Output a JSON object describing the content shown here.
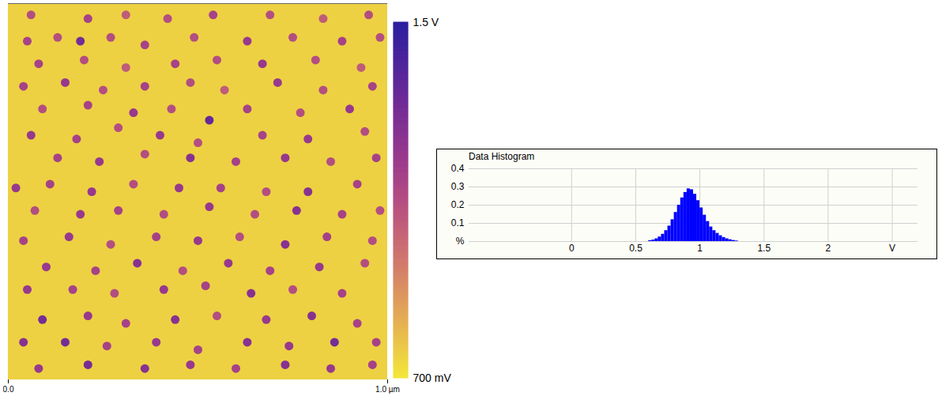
{
  "chart_data": [
    {
      "type": "heatmap",
      "xlim": [
        0,
        1
      ],
      "ylim": [
        0,
        1
      ],
      "xticks": [
        {
          "value": 0,
          "label": "0.0"
        },
        {
          "value": 1,
          "label": "1.0 µm"
        }
      ],
      "tick_labels": "x",
      "background": 0.75,
      "spots": {
        "x": [
          0.06,
          0.21,
          0.31,
          0.42,
          0.54,
          0.69,
          0.83,
          0.95,
          0.05,
          0.13,
          0.19,
          0.27,
          0.36,
          0.49,
          0.63,
          0.75,
          0.88,
          0.98,
          0.08,
          0.2,
          0.31,
          0.44,
          0.55,
          0.67,
          0.81,
          0.93,
          0.04,
          0.15,
          0.25,
          0.36,
          0.48,
          0.57,
          0.71,
          0.83,
          0.96,
          0.09,
          0.21,
          0.33,
          0.43,
          0.53,
          0.63,
          0.77,
          0.9,
          0.06,
          0.18,
          0.29,
          0.4,
          0.5,
          0.67,
          0.79,
          0.94,
          0.13,
          0.24,
          0.36,
          0.48,
          0.6,
          0.73,
          0.85,
          0.97,
          0.02,
          0.11,
          0.22,
          0.33,
          0.45,
          0.56,
          0.68,
          0.79,
          0.92,
          0.07,
          0.19,
          0.29,
          0.41,
          0.53,
          0.65,
          0.76,
          0.88,
          0.98,
          0.04,
          0.16,
          0.27,
          0.39,
          0.5,
          0.61,
          0.73,
          0.84,
          0.96,
          0.1,
          0.23,
          0.34,
          0.46,
          0.58,
          0.69,
          0.82,
          0.94,
          0.05,
          0.17,
          0.28,
          0.41,
          0.52,
          0.64,
          0.75,
          0.88,
          0.09,
          0.21,
          0.31,
          0.44,
          0.55,
          0.68,
          0.8,
          0.92,
          0.04,
          0.15,
          0.26,
          0.39,
          0.5,
          0.63,
          0.74,
          0.86,
          0.97,
          0.08,
          0.21,
          0.36,
          0.48,
          0.6,
          0.73,
          0.85,
          0.96
        ],
        "y": [
          0.03,
          0.04,
          0.03,
          0.04,
          0.03,
          0.03,
          0.04,
          0.03,
          0.1,
          0.09,
          0.1,
          0.09,
          0.11,
          0.09,
          0.1,
          0.09,
          0.1,
          0.09,
          0.16,
          0.15,
          0.17,
          0.16,
          0.15,
          0.16,
          0.15,
          0.17,
          0.22,
          0.21,
          0.23,
          0.22,
          0.21,
          0.23,
          0.21,
          0.23,
          0.22,
          0.28,
          0.27,
          0.29,
          0.28,
          0.31,
          0.28,
          0.29,
          0.28,
          0.35,
          0.36,
          0.33,
          0.35,
          0.37,
          0.35,
          0.36,
          0.34,
          0.41,
          0.42,
          0.4,
          0.41,
          0.42,
          0.41,
          0.42,
          0.41,
          0.49,
          0.48,
          0.5,
          0.48,
          0.49,
          0.49,
          0.5,
          0.5,
          0.48,
          0.55,
          0.56,
          0.55,
          0.56,
          0.54,
          0.56,
          0.55,
          0.56,
          0.55,
          0.63,
          0.62,
          0.64,
          0.62,
          0.63,
          0.62,
          0.64,
          0.62,
          0.63,
          0.7,
          0.71,
          0.69,
          0.71,
          0.69,
          0.71,
          0.7,
          0.69,
          0.76,
          0.76,
          0.77,
          0.76,
          0.75,
          0.77,
          0.76,
          0.77,
          0.84,
          0.83,
          0.85,
          0.84,
          0.83,
          0.84,
          0.83,
          0.85,
          0.9,
          0.9,
          0.91,
          0.9,
          0.92,
          0.9,
          0.91,
          0.9,
          0.9,
          0.97,
          0.96,
          0.97,
          0.96,
          0.97,
          0.96,
          0.97,
          0.96
        ],
        "values": [
          1.1,
          1.15,
          1.05,
          1.1,
          1.15,
          1.1,
          1.05,
          1.1,
          1.15,
          1.1,
          1.3,
          1.1,
          1.15,
          1.1,
          1.2,
          1.1,
          1.15,
          1.1,
          1.15,
          1.1,
          1.05,
          1.15,
          1.1,
          1.2,
          1.1,
          1.05,
          1.15,
          1.2,
          1.1,
          1.15,
          1.1,
          1.05,
          1.2,
          1.1,
          1.15,
          1.1,
          1.15,
          1.2,
          1.1,
          1.35,
          1.15,
          1.1,
          1.2,
          1.2,
          1.15,
          1.1,
          1.2,
          1.1,
          1.15,
          1.2,
          1.1,
          1.15,
          1.2,
          1.1,
          1.25,
          1.15,
          1.2,
          1.1,
          1.15,
          1.2,
          1.15,
          1.2,
          1.1,
          1.2,
          1.15,
          1.1,
          1.25,
          1.15,
          1.1,
          1.2,
          1.15,
          1.1,
          1.2,
          1.1,
          1.25,
          1.15,
          1.1,
          1.15,
          1.2,
          1.1,
          1.15,
          1.2,
          1.1,
          1.25,
          1.15,
          1.1,
          1.2,
          1.15,
          1.25,
          1.1,
          1.2,
          1.15,
          1.2,
          1.1,
          1.2,
          1.15,
          1.1,
          1.2,
          1.15,
          1.25,
          1.1,
          1.15,
          1.3,
          1.2,
          1.15,
          1.25,
          1.1,
          1.2,
          1.25,
          1.15,
          1.25,
          1.3,
          1.15,
          1.2,
          1.15,
          1.25,
          1.2,
          1.3,
          1.15,
          1.2,
          1.3,
          1.25,
          1.2,
          1.15,
          1.25,
          1.2,
          1.15
        ]
      },
      "colorbar": {
        "range": [
          0.7,
          1.5
        ],
        "ticks": [
          {
            "value": 0.7,
            "label": "700 mV"
          },
          {
            "value": 1.5,
            "label": "1.5 V"
          }
        ],
        "colors": [
          "#f3e838",
          "#c6338c",
          "#2a1fa0"
        ]
      }
    },
    {
      "type": "histogram",
      "title": "Data Histogram",
      "bins": [
        0.6,
        0.625,
        0.65,
        0.675,
        0.7,
        0.725,
        0.75,
        0.775,
        0.8,
        0.825,
        0.85,
        0.875,
        0.9,
        0.925,
        0.95,
        0.975,
        1,
        1.025,
        1.05,
        1.075,
        1.1,
        1.125,
        1.15,
        1.175,
        1.2,
        1.225,
        1.25,
        1.275,
        1.3
      ],
      "values": [
        0.005,
        0.008,
        0.015,
        0.025,
        0.04,
        0.06,
        0.085,
        0.12,
        0.16,
        0.2,
        0.24,
        0.27,
        0.29,
        0.285,
        0.26,
        0.225,
        0.185,
        0.145,
        0.11,
        0.08,
        0.06,
        0.045,
        0.032,
        0.022,
        0.015,
        0.01,
        0.006,
        0.003
      ],
      "color": "#0000ff",
      "xlim": [
        -0.8,
        2.7
      ],
      "xticks": [
        0,
        0.5,
        1,
        1.5,
        2,
        {
          "value": 2.5,
          "label": "V"
        }
      ],
      "ylim": [
        0,
        0.4
      ],
      "yticks": [
        {
          "value": 0,
          "label": "%"
        },
        0.1,
        0.2,
        0.3,
        0.4
      ],
      "grid": true
    }
  ]
}
